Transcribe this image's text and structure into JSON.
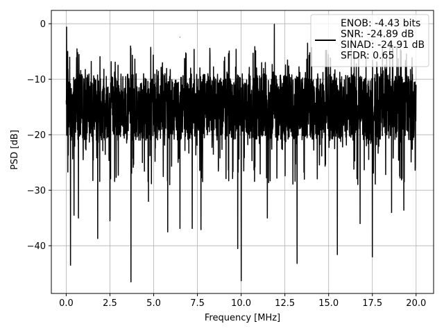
{
  "chart_data": {
    "type": "line",
    "xlabel": "Frequency [MHz]",
    "ylabel": "PSD [dB]",
    "xlim": [
      -0.85,
      21.0
    ],
    "ylim": [
      -48.6,
      2.4
    ],
    "xticks": [
      0.0,
      2.5,
      5.0,
      7.5,
      10.0,
      12.5,
      15.0,
      17.5,
      20.0
    ],
    "xtick_labels": [
      "0.0",
      "2.5",
      "5.0",
      "7.5",
      "10.0",
      "12.5",
      "15.0",
      "17.5",
      "20.0"
    ],
    "yticks": [
      0,
      -10,
      -20,
      -30,
      -40
    ],
    "ytick_labels": [
      "0",
      "−10",
      "−20",
      "−30",
      "−40"
    ],
    "grid": true,
    "legend_position": "top-right",
    "colors": {
      "line": "#000000",
      "grid": "#b0b0b0"
    },
    "series": [
      {
        "name": "ENOB: -4.43 bits\nSNR: -24.89 dB\nSINAD: -24.91 dB\nSFDR: 0.65",
        "legend_lines": [
          "ENOB: -4.43 bits",
          "SNR: -24.89 dB",
          "SINAD: -24.91 dB",
          "SFDR: 0.65"
        ],
        "x_range": [
          0.0,
          20.0
        ],
        "band_upper_db": -9,
        "band_lower_db": -21,
        "peaks": [
          {
            "x": 0.02,
            "y": -0.6
          },
          {
            "x": 0.1,
            "y": -8.2
          },
          {
            "x": 6.5,
            "y": -2.4
          },
          {
            "x": 11.9,
            "y": -0.1
          },
          {
            "x": 13.8,
            "y": -3.5
          },
          {
            "x": 15.5,
            "y": -3.6
          },
          {
            "x": 16.3,
            "y": -2.6
          },
          {
            "x": 18.5,
            "y": -3.3
          }
        ],
        "dips": [
          {
            "x": 0.25,
            "y": -43.5
          },
          {
            "x": 0.45,
            "y": -34.5
          },
          {
            "x": 0.7,
            "y": -35.0
          },
          {
            "x": 1.8,
            "y": -38.7
          },
          {
            "x": 2.5,
            "y": -35.5
          },
          {
            "x": 3.7,
            "y": -46.5
          },
          {
            "x": 4.7,
            "y": -32.0
          },
          {
            "x": 5.8,
            "y": -37.5
          },
          {
            "x": 6.5,
            "y": -36.9
          },
          {
            "x": 7.2,
            "y": -36.9
          },
          {
            "x": 7.7,
            "y": -37.1
          },
          {
            "x": 9.8,
            "y": -40.5
          },
          {
            "x": 10.0,
            "y": -46.3
          },
          {
            "x": 11.5,
            "y": -35.0
          },
          {
            "x": 13.2,
            "y": -43.2
          },
          {
            "x": 15.5,
            "y": -41.6
          },
          {
            "x": 16.8,
            "y": -36.0
          },
          {
            "x": 17.5,
            "y": -42.0
          },
          {
            "x": 18.6,
            "y": -34.0
          },
          {
            "x": 19.3,
            "y": -33.6
          }
        ]
      }
    ]
  }
}
